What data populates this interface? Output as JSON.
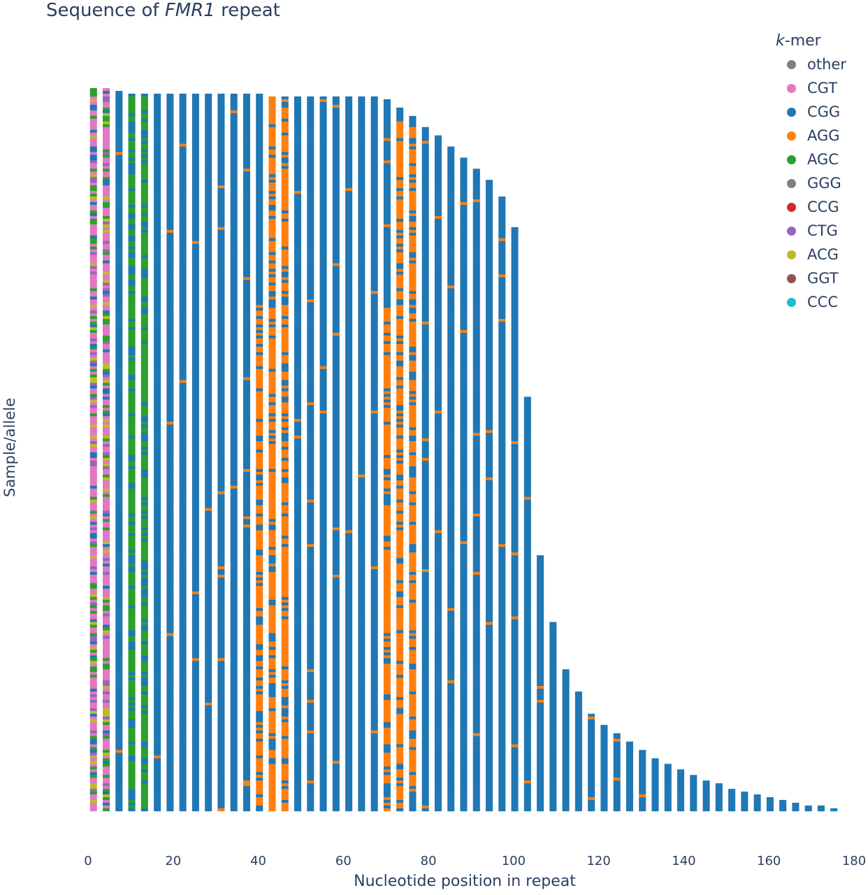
{
  "chart_data": {
    "type": "heatmap",
    "title": {
      "prefix": "Sequence of ",
      "gene": "FMR1",
      "suffix": " repeat"
    },
    "xlabel": "Nucleotide position in repeat",
    "ylabel": "Sample/allele",
    "xlim": [
      0,
      180
    ],
    "x_ticks": [
      0,
      20,
      40,
      60,
      80,
      100,
      120,
      140,
      160,
      180
    ],
    "legend": {
      "title_prefix": "k",
      "title_suffix": "-mer",
      "placement": "top-right",
      "entries": [
        {
          "name": "other",
          "color": "#7f7f7f"
        },
        {
          "name": "CGT",
          "color": "#e377c2"
        },
        {
          "name": "CGG",
          "color": "#1f77b4"
        },
        {
          "name": "AGG",
          "color": "#ff7f0e"
        },
        {
          "name": "AGC",
          "color": "#2ca02c"
        },
        {
          "name": "GGG",
          "color": "#7f7f7f"
        },
        {
          "name": "CCG",
          "color": "#d62728"
        },
        {
          "name": "CTG",
          "color": "#9467bd"
        },
        {
          "name": "ACG",
          "color": "#bcbd22"
        },
        {
          "name": "GGT",
          "color": "#8c564b"
        },
        {
          "name": "CCC",
          "color": "#17becf"
        }
      ]
    },
    "repeat_length_profile": [
      {
        "row_fraction": 0.0,
        "length": 5
      },
      {
        "row_fraction": 0.005,
        "length": 8
      },
      {
        "row_fraction": 0.01,
        "length": 68
      },
      {
        "row_fraction": 0.03,
        "length": 74
      },
      {
        "row_fraction": 0.08,
        "length": 85
      },
      {
        "row_fraction": 0.14,
        "length": 96
      },
      {
        "row_fraction": 0.2,
        "length": 100
      },
      {
        "row_fraction": 0.35,
        "length": 101
      },
      {
        "row_fraction": 0.5,
        "length": 104
      },
      {
        "row_fraction": 0.63,
        "length": 105
      },
      {
        "row_fraction": 0.7,
        "length": 107
      },
      {
        "row_fraction": 0.8,
        "length": 111
      },
      {
        "row_fraction": 0.87,
        "length": 118
      },
      {
        "row_fraction": 0.92,
        "length": 130
      },
      {
        "row_fraction": 0.96,
        "length": 145
      },
      {
        "row_fraction": 0.985,
        "length": 160
      },
      {
        "row_fraction": 1.0,
        "length": 177
      }
    ],
    "interruption_bands": [
      {
        "kmer": "AGG",
        "center_start": 42,
        "center_end": 44,
        "top_start": 41
      },
      {
        "kmer": "AGG",
        "center_start": 72,
        "center_end": 74,
        "top_start": 70
      },
      {
        "kmer": "AGC",
        "center_start": 10,
        "center_end": 12,
        "top_start": 10
      }
    ],
    "prefix_kmer": "CGT",
    "prefix_length": 5
  }
}
